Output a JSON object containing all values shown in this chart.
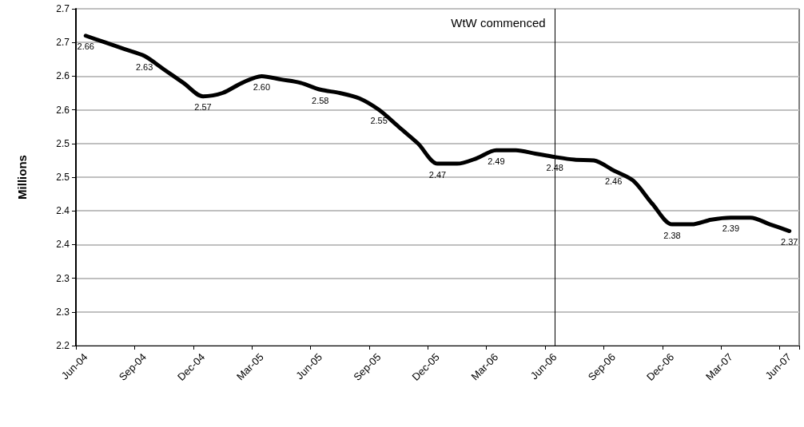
{
  "chart_data": {
    "type": "line",
    "ylabel": "Millions",
    "categories": [
      "Jun-04",
      null,
      null,
      "Sep-04",
      null,
      null,
      "Dec-04",
      null,
      null,
      "Mar-05",
      null,
      null,
      "Jun-05",
      null,
      null,
      "Sep-05",
      null,
      null,
      "Dec-05",
      null,
      null,
      "Mar-06",
      null,
      null,
      "Jun-06",
      null,
      null,
      "Sep-06",
      null,
      null,
      "Dec-06",
      null,
      null,
      "Mar-07",
      null,
      null,
      "Jun-07"
    ],
    "series": [
      {
        "color": "#000000",
        "values": [
          2.66,
          2.65,
          2.64,
          2.63,
          2.61,
          2.59,
          2.57,
          2.575,
          2.59,
          2.6,
          2.595,
          2.59,
          2.58,
          2.575,
          2.567,
          2.55,
          2.525,
          2.5,
          2.47,
          2.47,
          2.478,
          2.49,
          2.49,
          2.485,
          2.48,
          2.476,
          2.475,
          2.46,
          2.445,
          2.41,
          2.38,
          2.38,
          2.387,
          2.39,
          2.39,
          2.38,
          2.37
        ],
        "value_labels": [
          "2.66",
          null,
          null,
          "2.63",
          null,
          null,
          "2.57",
          null,
          null,
          "2.60",
          null,
          null,
          "2.58",
          null,
          null,
          "2.55",
          null,
          null,
          "2.47",
          null,
          null,
          "2.49",
          null,
          null,
          "2.48",
          null,
          null,
          "2.46",
          null,
          null,
          "2.38",
          null,
          null,
          "2.39",
          null,
          null,
          "2.37"
        ]
      }
    ],
    "ylim": [
      2.2,
      2.7
    ],
    "yticks": [
      2.2,
      {
        "value": 2.25,
        "label": "2.3"
      },
      2.3,
      {
        "value": 2.35,
        "label": "2.4"
      },
      2.4,
      {
        "value": 2.45,
        "label": "2.5"
      },
      2.5,
      {
        "value": 2.55,
        "label": "2.6"
      },
      2.6,
      {
        "value": 2.65,
        "label": "2.7"
      },
      2.7
    ],
    "grid": "y",
    "marker": "none",
    "line_style": "solid",
    "ref_lines": [
      {
        "axis": "x",
        "value": "Jun-06",
        "label": "WtW commenced",
        "color": "#000000"
      }
    ]
  }
}
